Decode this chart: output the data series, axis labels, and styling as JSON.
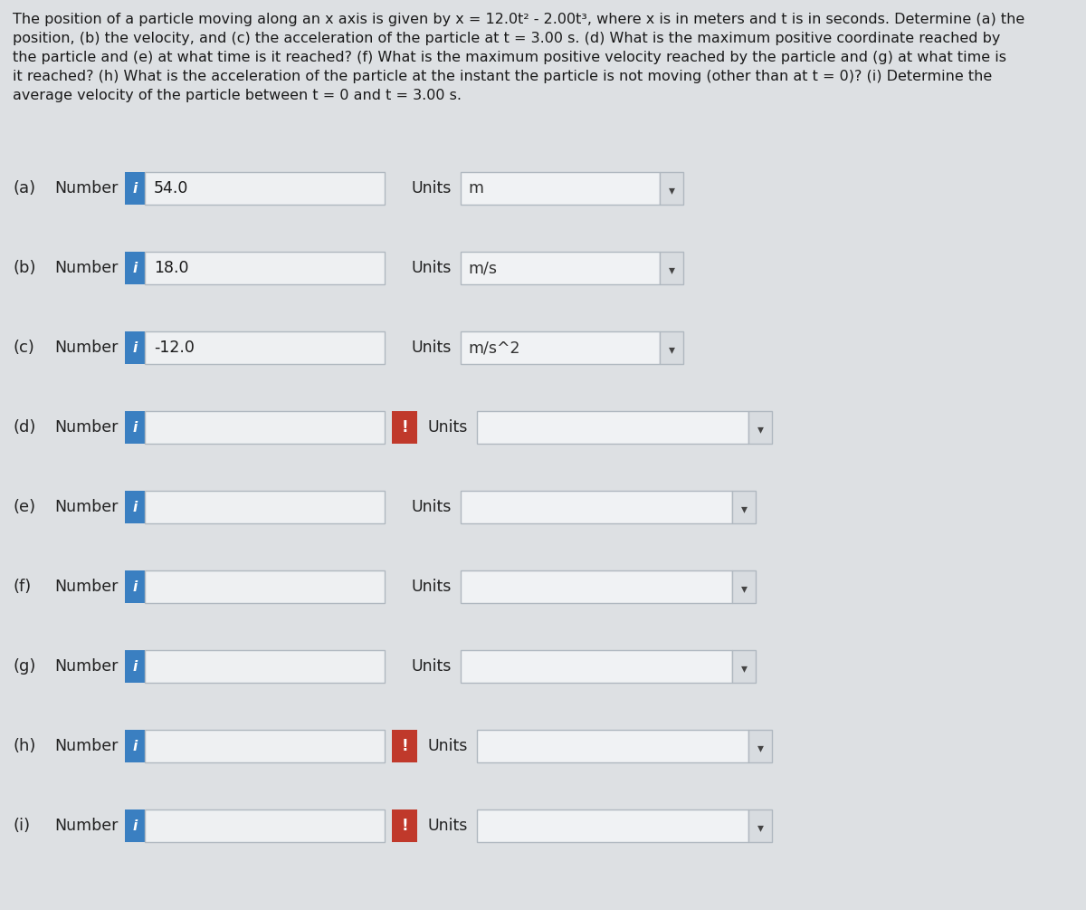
{
  "background_color": "#dde0e3",
  "title_text": "The position of a particle moving along an x axis is given by x = 12.0t² - 2.00t³, where x is in meters and t is in seconds. Determine (a) the\nposition, (b) the velocity, and (c) the acceleration of the particle at t = 3.00 s. (d) What is the maximum positive coordinate reached by\nthe particle and (e) at what time is it reached? (f) What is the maximum positive velocity reached by the particle and (g) at what time is\nit reached? (h) What is the acceleration of the particle at the instant the particle is not moving (other than at t = 0)? (i) Determine the\naverage velocity of the particle between t = 0 and t = 3.00 s.",
  "rows": [
    {
      "label": "(a)",
      "number_value": "54.0",
      "has_exclaim": false,
      "units_value": "m",
      "has_units_box": true
    },
    {
      "label": "(b)",
      "number_value": "18.0",
      "has_exclaim": false,
      "units_value": "m/s",
      "has_units_box": true
    },
    {
      "label": "(c)",
      "number_value": "-12.0",
      "has_exclaim": false,
      "units_value": "m/s^2",
      "has_units_box": true
    },
    {
      "label": "(d)",
      "number_value": "",
      "has_exclaim": true,
      "units_value": "",
      "has_units_box": true
    },
    {
      "label": "(e)",
      "number_value": "",
      "has_exclaim": false,
      "units_value": "",
      "has_units_box": true
    },
    {
      "label": "(f)",
      "number_value": "",
      "has_exclaim": false,
      "units_value": "",
      "has_units_box": true
    },
    {
      "label": "(g)",
      "number_value": "",
      "has_exclaim": false,
      "units_value": "",
      "has_units_box": true
    },
    {
      "label": "(h)",
      "number_value": "",
      "has_exclaim": true,
      "units_value": "",
      "has_units_box": true
    },
    {
      "label": "(i)",
      "number_value": "",
      "has_exclaim": true,
      "units_value": "",
      "has_units_box": true
    }
  ],
  "blue_color": "#3a7fc1",
  "red_color": "#c0392b",
  "num_box_bg": "#eef0f2",
  "num_box_border": "#b0b8c0",
  "units_box_bg": "#f0f2f4",
  "units_box_border": "#b0b8c0",
  "text_color": "#1a1a1a",
  "label_color": "#222222",
  "units_text_color": "#333333"
}
